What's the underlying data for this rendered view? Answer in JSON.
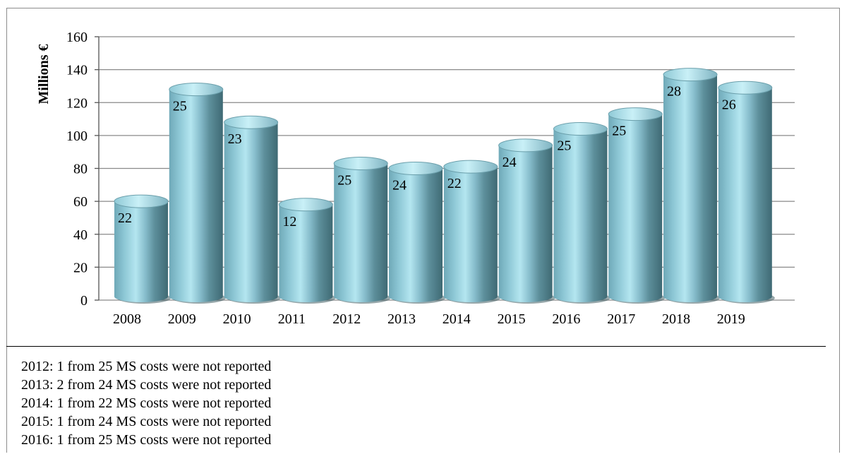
{
  "chart_data": {
    "type": "bar",
    "ylabel": "Millions €",
    "ylim": [
      0,
      160
    ],
    "yticks": [
      0,
      20,
      40,
      60,
      80,
      100,
      120,
      140,
      160
    ],
    "grid": true,
    "categories": [
      "2008",
      "2009",
      "2010",
      "2011",
      "2012",
      "2013",
      "2014",
      "2015",
      "2016",
      "2017",
      "2018",
      "2019"
    ],
    "values": [
      60,
      128,
      108,
      58,
      83,
      80,
      81,
      94,
      104,
      113,
      137,
      129
    ],
    "data_labels": [
      "22",
      "25",
      "23",
      "12",
      "25",
      "24",
      "22",
      "24",
      "25",
      "25",
      "28",
      "26"
    ],
    "colors": {
      "bar_light": "#9fd6e2",
      "bar_mid": "#7ab8c8",
      "bar_dark": "#4f7f8b",
      "bar_top": "#a8dce8",
      "grid": "#8a8a8a"
    }
  },
  "notes": [
    "2012: 1 from 25 MS costs were not reported",
    "2013: 2 from 24 MS costs were not reported",
    "2014: 1 from 22 MS costs were not reported",
    "2015: 1 from 24 MS costs were not reported",
    "2016: 1 from 25 MS costs were not reported"
  ]
}
